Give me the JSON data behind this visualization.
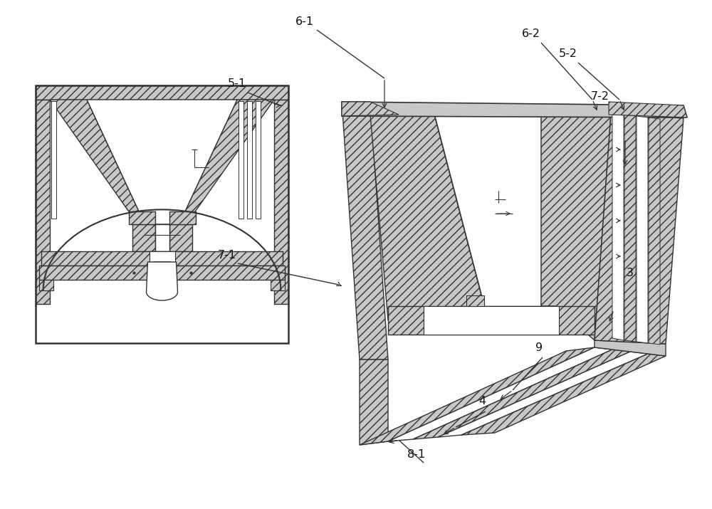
{
  "background_color": "#ffffff",
  "line_color": "#333333",
  "label_color": "#111111",
  "hatch_fc": "#c8c8c8",
  "white_fc": "#ffffff"
}
